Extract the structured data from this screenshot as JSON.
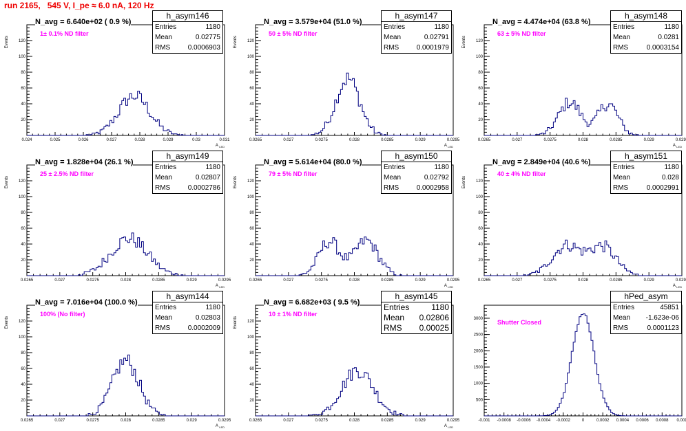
{
  "run_title": "run 2165,   545 V, I_pe ≈ 6.0 nA, 120 Hz",
  "colors": {
    "histogram": "#000080",
    "title": "#ee0000",
    "label": "#ff00ff"
  },
  "chart_data": [
    {
      "type": "histogram",
      "title": "h_asym146",
      "annotation": "N_avg = 6.640e+02 ( 0.9 %)",
      "label": "1± 0.1% ND filter",
      "xlabel": "A_LED",
      "ylabel": "Events",
      "xlim": [
        0.024,
        0.031
      ],
      "ylim": [
        0,
        140
      ],
      "xticks": [
        "0.024",
        "0.025",
        "0.026",
        "0.027",
        "0.028",
        "0.029",
        "0.03",
        "0.031"
      ],
      "xtick_values": [
        0.024,
        0.025,
        0.026,
        0.027,
        0.028,
        0.029,
        0.03,
        0.031
      ],
      "yticks": [
        20,
        40,
        60,
        80,
        100,
        120
      ],
      "stats": [
        [
          "Entries",
          "1180"
        ],
        [
          "Mean",
          "0.02775"
        ],
        [
          "RMS",
          "0.0006903"
        ]
      ],
      "shape": {
        "peaks": [
          [
            0.0278,
            0.00055,
            50
          ]
        ]
      }
    },
    {
      "type": "histogram",
      "title": "h_asym147",
      "annotation": "N_avg = 3.579e+04 (51.0 %)",
      "label": "50 ± 5% ND filter",
      "xlabel": "A_LED",
      "ylabel": "Events",
      "xlim": [
        0.0265,
        0.0295
      ],
      "ylim": [
        0,
        140
      ],
      "xticks": [
        "0.0265",
        "0.027",
        "0.0275",
        "0.028",
        "0.0285",
        "0.029",
        "0.0295"
      ],
      "xtick_values": [
        0.0265,
        0.027,
        0.0275,
        0.028,
        0.0285,
        0.029,
        0.0295
      ],
      "yticks": [
        20,
        40,
        60,
        80,
        100,
        120
      ],
      "stats": [
        [
          "Entries",
          "1180"
        ],
        [
          "Mean",
          "0.02791"
        ],
        [
          "RMS",
          "0.0001979"
        ]
      ],
      "shape": {
        "peaks": [
          [
            0.0279,
            0.00018,
            72
          ]
        ]
      }
    },
    {
      "type": "histogram",
      "title": "h_asym148",
      "annotation": "N_avg = 4.474e+04 (63.8 %)",
      "label": "63 ± 5% ND filter",
      "xlabel": "A_LED",
      "ylabel": "Events",
      "xlim": [
        0.0265,
        0.0295
      ],
      "ylim": [
        0,
        140
      ],
      "xticks": [
        "0.0265",
        "0.027",
        "0.0275",
        "0.028",
        "0.0285",
        "0.029",
        "0.0295"
      ],
      "xtick_values": [
        0.0265,
        0.027,
        0.0275,
        0.028,
        0.0285,
        0.029,
        0.0295
      ],
      "yticks": [
        20,
        40,
        60,
        80,
        100,
        120
      ],
      "stats": [
        [
          "Entries",
          "1180"
        ],
        [
          "Mean",
          "0.0281"
        ],
        [
          "RMS",
          "0.0003154"
        ]
      ],
      "shape": {
        "peaks": [
          [
            0.0278,
            0.00017,
            42
          ],
          [
            0.02838,
            0.00015,
            40
          ]
        ]
      }
    },
    {
      "type": "histogram",
      "title": "h_asym149",
      "annotation": "N_avg = 1.828e+04 (26.1 %)",
      "label": "25 ± 2.5% ND filter",
      "xlabel": "A_LED",
      "ylabel": "Events",
      "xlim": [
        0.0265,
        0.0295
      ],
      "ylim": [
        0,
        140
      ],
      "xticks": [
        "0.0265",
        "0.027",
        "0.0275",
        "0.028",
        "0.0285",
        "0.029",
        "0.0295"
      ],
      "xtick_values": [
        0.0265,
        0.027,
        0.0275,
        0.028,
        0.0285,
        0.029,
        0.0295
      ],
      "yticks": [
        20,
        40,
        60,
        80,
        100,
        120
      ],
      "stats": [
        [
          "Entries",
          "1180"
        ],
        [
          "Mean",
          "0.02807"
        ],
        [
          "RMS",
          "0.0002786"
        ]
      ],
      "shape": {
        "peaks": [
          [
            0.02805,
            0.00028,
            47
          ]
        ]
      }
    },
    {
      "type": "histogram",
      "title": "h_asym150",
      "annotation": "N_avg = 5.614e+04 (80.0 %)",
      "label": "79 ± 5% ND filter",
      "xlabel": "A_LED",
      "ylabel": "Events",
      "xlim": [
        0.0265,
        0.0295
      ],
      "ylim": [
        0,
        140
      ],
      "xticks": [
        "0.0265",
        "0.027",
        "0.0275",
        "0.028",
        "0.0285",
        "0.029",
        "0.0295"
      ],
      "xtick_values": [
        0.0265,
        0.027,
        0.0275,
        0.028,
        0.0285,
        0.029,
        0.0295
      ],
      "yticks": [
        20,
        40,
        60,
        80,
        100,
        120
      ],
      "stats": [
        [
          "Entries",
          "1180"
        ],
        [
          "Mean",
          "0.02792"
        ],
        [
          "RMS",
          "0.0002958"
        ]
      ],
      "shape": {
        "peaks": [
          [
            0.02762,
            0.00016,
            43
          ],
          [
            0.02818,
            0.00018,
            44
          ]
        ]
      }
    },
    {
      "type": "histogram",
      "title": "h_asym151",
      "annotation": "N_avg = 2.849e+04 (40.6 %)",
      "label": "40 ± 4% ND filter",
      "xlabel": "A_LED",
      "ylabel": "Events",
      "xlim": [
        0.0265,
        0.0295
      ],
      "ylim": [
        0,
        140
      ],
      "xticks": [
        "0.0265",
        "0.027",
        "0.0275",
        "0.028",
        "0.0285",
        "0.029",
        "0.0295"
      ],
      "xtick_values": [
        0.0265,
        0.027,
        0.0275,
        0.028,
        0.0285,
        0.029,
        0.0295
      ],
      "yticks": [
        20,
        40,
        60,
        80,
        100,
        120
      ],
      "stats": [
        [
          "Entries",
          "1180"
        ],
        [
          "Mean",
          "0.028"
        ],
        [
          "RMS",
          "0.0002991"
        ]
      ],
      "shape": {
        "peaks": [
          [
            0.02775,
            0.00022,
            38
          ],
          [
            0.0283,
            0.0002,
            36
          ]
        ]
      }
    },
    {
      "type": "histogram",
      "title": "h_asym144",
      "annotation": "N_avg = 7.016e+04 (100.0 %)",
      "label": "100% (No filter)",
      "xlabel": "A_LED",
      "ylabel": "Events",
      "xlim": [
        0.0265,
        0.0295
      ],
      "ylim": [
        0,
        140
      ],
      "xticks": [
        "0.0265",
        "0.027",
        "0.0275",
        "0.028",
        "0.0285",
        "0.029",
        "0.0295"
      ],
      "xtick_values": [
        0.0265,
        0.027,
        0.0275,
        0.028,
        0.0285,
        0.029,
        0.0295
      ],
      "yticks": [
        20,
        40,
        60,
        80,
        100,
        120
      ],
      "stats": [
        [
          "Entries",
          "1180"
        ],
        [
          "Mean",
          "0.02803"
        ],
        [
          "RMS",
          "0.0002009"
        ]
      ],
      "shape": {
        "peaks": [
          [
            0.028,
            0.0002,
            70
          ]
        ]
      }
    },
    {
      "type": "histogram",
      "title": "h_asym145",
      "annotation": "N_avg = 6.682e+03 ( 9.5 %)",
      "label": "10 ± 1% ND filter",
      "xlabel": "A_LED",
      "ylabel": "Events",
      "xlim": [
        0.0265,
        0.0295
      ],
      "ylim": [
        0,
        140
      ],
      "xticks": [
        "0.0265",
        "0.027",
        "0.0275",
        "0.028",
        "0.0285",
        "0.029",
        "0.0295"
      ],
      "xtick_values": [
        0.0265,
        0.027,
        0.0275,
        0.028,
        0.0285,
        0.029,
        0.0295
      ],
      "yticks": [
        20,
        40,
        60,
        80,
        100,
        120
      ],
      "stats": [
        [
          "Entries",
          "1180"
        ],
        [
          "Mean",
          "0.02806"
        ],
        [
          "RMS",
          "0.00025"
        ]
      ],
      "stats_large": true,
      "shape": {
        "peaks": [
          [
            0.02805,
            0.00024,
            58
          ]
        ]
      }
    },
    {
      "type": "histogram",
      "title": "hPed_asym",
      "annotation": "",
      "label": "Shutter Closed",
      "xlabel": "",
      "ylabel": "",
      "xlim": [
        -0.001,
        0.001
      ],
      "ylim": [
        0,
        3400
      ],
      "xticks": [
        "-0.001",
        "-0.0008",
        "-0.0006",
        "-0.0004",
        "-0.0002",
        "0",
        "0.0002",
        "0.0004",
        "0.0006",
        "0.0008",
        "0.001"
      ],
      "xtick_values": [
        -0.001,
        -0.0008,
        -0.0006,
        -0.0004,
        -0.0002,
        0,
        0.0002,
        0.0004,
        0.0006,
        0.0008,
        0.001
      ],
      "yticks": [
        500,
        1000,
        1500,
        2000,
        2500,
        3000
      ],
      "stats": [
        [
          "Entries",
          "45851"
        ],
        [
          "Mean",
          "-1.623e-06"
        ],
        [
          "RMS",
          "0.0001123"
        ]
      ],
      "shape": {
        "peaks": [
          [
            0.0,
            0.000112,
            3150
          ]
        ]
      }
    }
  ]
}
